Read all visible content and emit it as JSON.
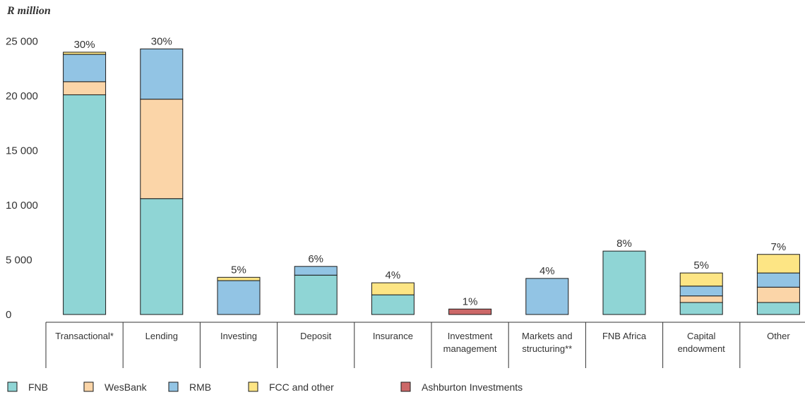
{
  "chart_data": {
    "type": "bar",
    "stacked": true,
    "unit_label": "R million",
    "ylim": [
      0,
      25000
    ],
    "y_ticks": [
      {
        "value": 0,
        "label": "0"
      },
      {
        "value": 5000,
        "label": "5 000"
      },
      {
        "value": 10000,
        "label": "10 000"
      },
      {
        "value": 15000,
        "label": "15 000"
      },
      {
        "value": 20000,
        "label": "20 000"
      },
      {
        "value": 25000,
        "label": "25 000"
      }
    ],
    "grid": false,
    "legend_position": "bottom-left",
    "categories": [
      {
        "label": [
          "Transactional*"
        ],
        "share": "30%"
      },
      {
        "label": [
          "Lending"
        ],
        "share": "30%"
      },
      {
        "label": [
          "Investing"
        ],
        "share": "5%"
      },
      {
        "label": [
          "Deposit"
        ],
        "share": "6%"
      },
      {
        "label": [
          "Insurance"
        ],
        "share": "4%"
      },
      {
        "label": [
          "Investment",
          "management"
        ],
        "share": "1%"
      },
      {
        "label": [
          "Markets and",
          "structuring**"
        ],
        "share": "4%"
      },
      {
        "label": [
          "FNB Africa"
        ],
        "share": "8%"
      },
      {
        "label": [
          "Capital",
          "endowment"
        ],
        "share": "5%"
      },
      {
        "label": [
          "Other"
        ],
        "share": "7%"
      }
    ],
    "series": [
      {
        "name": "FNB",
        "color": "#8fd5d5",
        "values": [
          20100,
          10600,
          0,
          3600,
          1800,
          0,
          0,
          5800,
          1100,
          1100
        ]
      },
      {
        "name": "WesBank",
        "color": "#fbd5a8",
        "values": [
          1200,
          9100,
          0,
          0,
          0,
          0,
          0,
          0,
          600,
          1400
        ]
      },
      {
        "name": "RMB",
        "color": "#92c4e4",
        "values": [
          2500,
          4600,
          3100,
          800,
          0,
          0,
          3300,
          0,
          900,
          1300
        ]
      },
      {
        "name": "FCC and other",
        "color": "#fde584",
        "values": [
          200,
          0,
          300,
          0,
          1100,
          0,
          0,
          0,
          1200,
          1700
        ]
      },
      {
        "name": "Ashburton Investments",
        "color": "#cc6868",
        "values": [
          0,
          0,
          0,
          0,
          0,
          500,
          0,
          0,
          0,
          0
        ]
      }
    ]
  }
}
